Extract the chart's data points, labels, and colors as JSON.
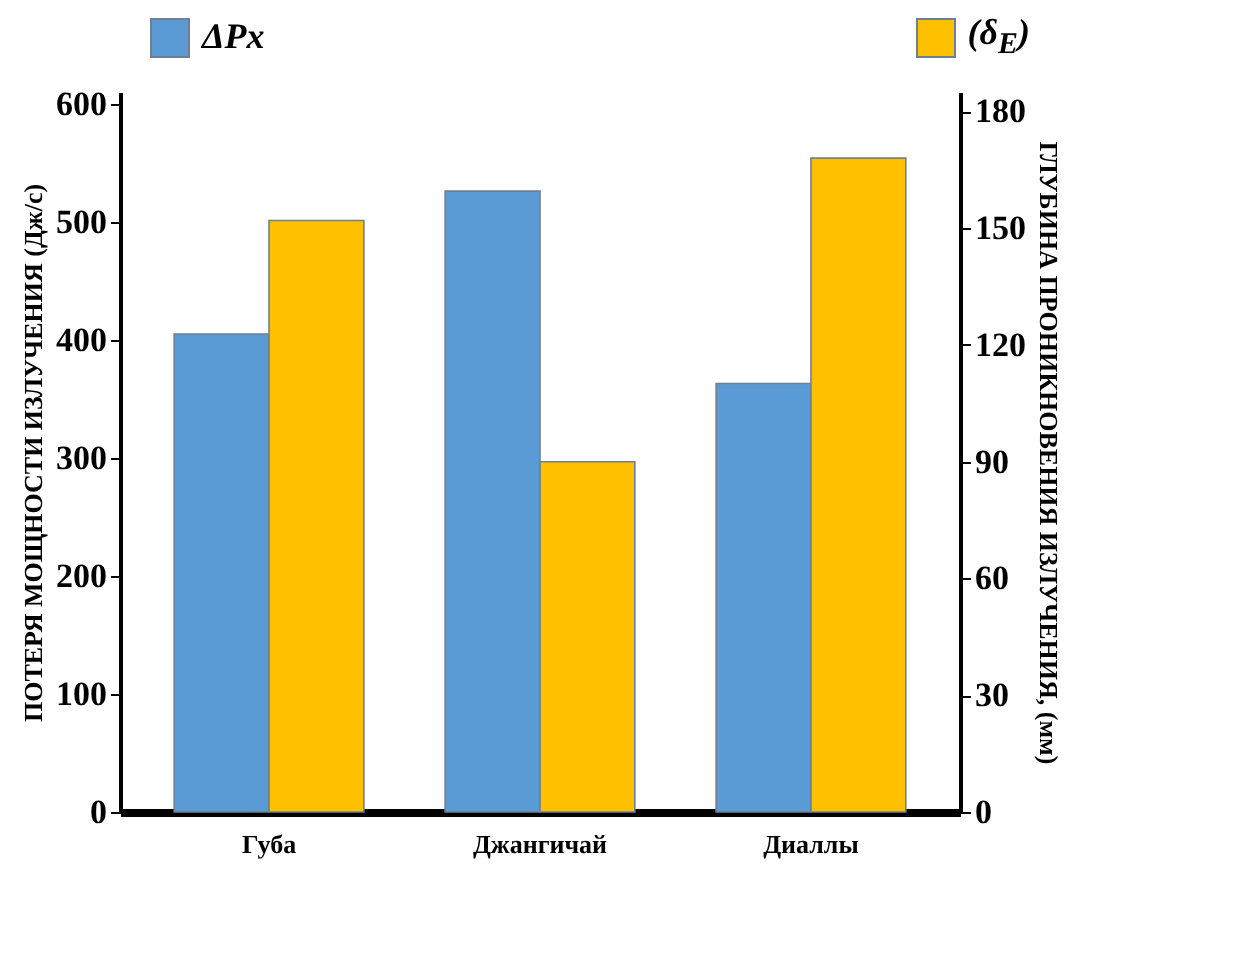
{
  "chart_data": {
    "type": "bar",
    "categories": [
      "Губа",
      "Джангичай",
      "Диаллы"
    ],
    "ylabel": "ПОТЕРЯ МОЩНОСТИ ИЗЛУЧЕНИЯ (Дж/с)",
    "y2label": "ГЛУБИНА ПРОНИКНОВЕНИЯ ИЗЛУЧЕНИЯ, (мм)",
    "series": [
      {
        "name": "ΔPx",
        "color": "#5b9bd5",
        "values": [
          405,
          526,
          363
        ]
      },
      {
        "name": "(δ$_{E}$)",
        "color": "#ffc000",
        "values": [
          152,
          90,
          168
        ],
        "axis": "y2"
      }
    ],
    "ylim": [
      0,
      610
    ],
    "yticks": [
      0,
      100,
      200,
      300,
      400,
      500,
      600
    ],
    "y2lim": [
      0,
      185
    ],
    "y2ticks": [
      0,
      30,
      60,
      90,
      120,
      150,
      180
    ],
    "legend": "top",
    "grid": false
  }
}
